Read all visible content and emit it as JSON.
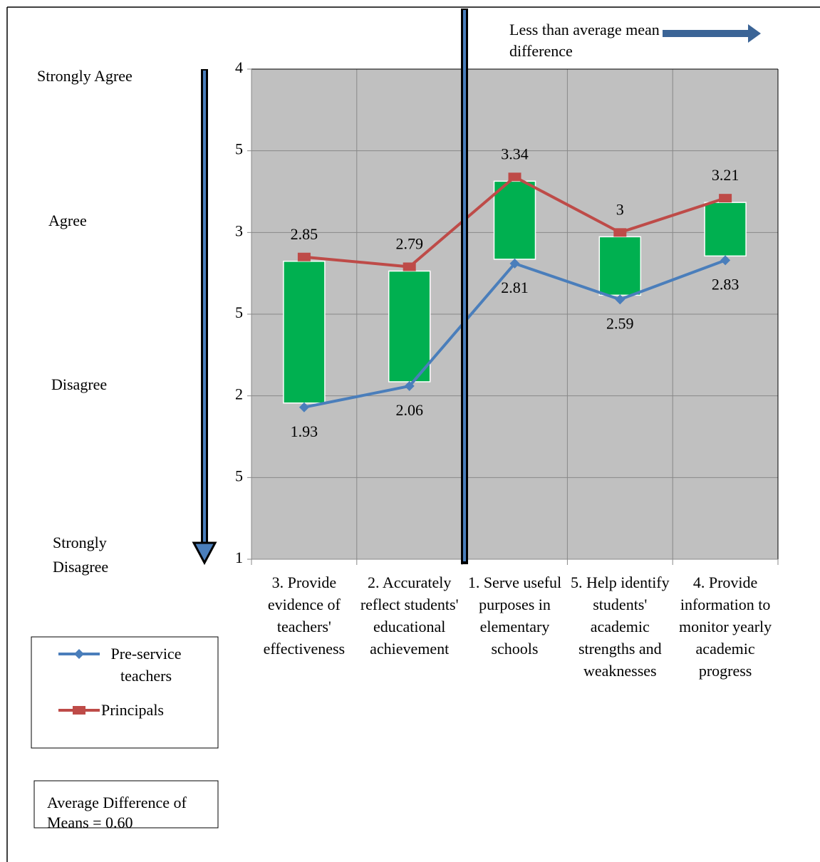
{
  "chart_data": {
    "type": "line",
    "categories": [
      "3.  Provide evidence of teachers' effectiveness",
      "2. Accurately reflect students' educational achievement",
      "1. Serve useful purposes in elementary schools",
      "5. Help identify students' academic strengths and weaknesses",
      "4.  Provide information to monitor yearly academic progress"
    ],
    "series": [
      {
        "name": "Pre-service teachers",
        "color": "#4a7ebb",
        "marker": "diamond",
        "values": [
          1.93,
          2.06,
          2.81,
          2.59,
          2.83
        ]
      },
      {
        "name": "Principals",
        "color": "#be4b48",
        "marker": "square",
        "values": [
          2.85,
          2.79,
          3.34,
          3,
          3.21
        ]
      }
    ],
    "high_low_color": "#00b050",
    "ylim": [
      1,
      4
    ],
    "yticks": [
      1,
      {
        "value": 1.5,
        "label": "5"
      },
      2,
      {
        "value": 2.5,
        "label": "5"
      },
      3,
      {
        "value": 3.5,
        "label": "5"
      },
      4
    ],
    "grid": true,
    "scale_labels": [
      "Strongly Agree",
      "Agree",
      "Disagree",
      "Strongly Disagree"
    ],
    "annotations": [
      "Less than average mean difference",
      "Average Difference of Means = 0.60"
    ]
  }
}
